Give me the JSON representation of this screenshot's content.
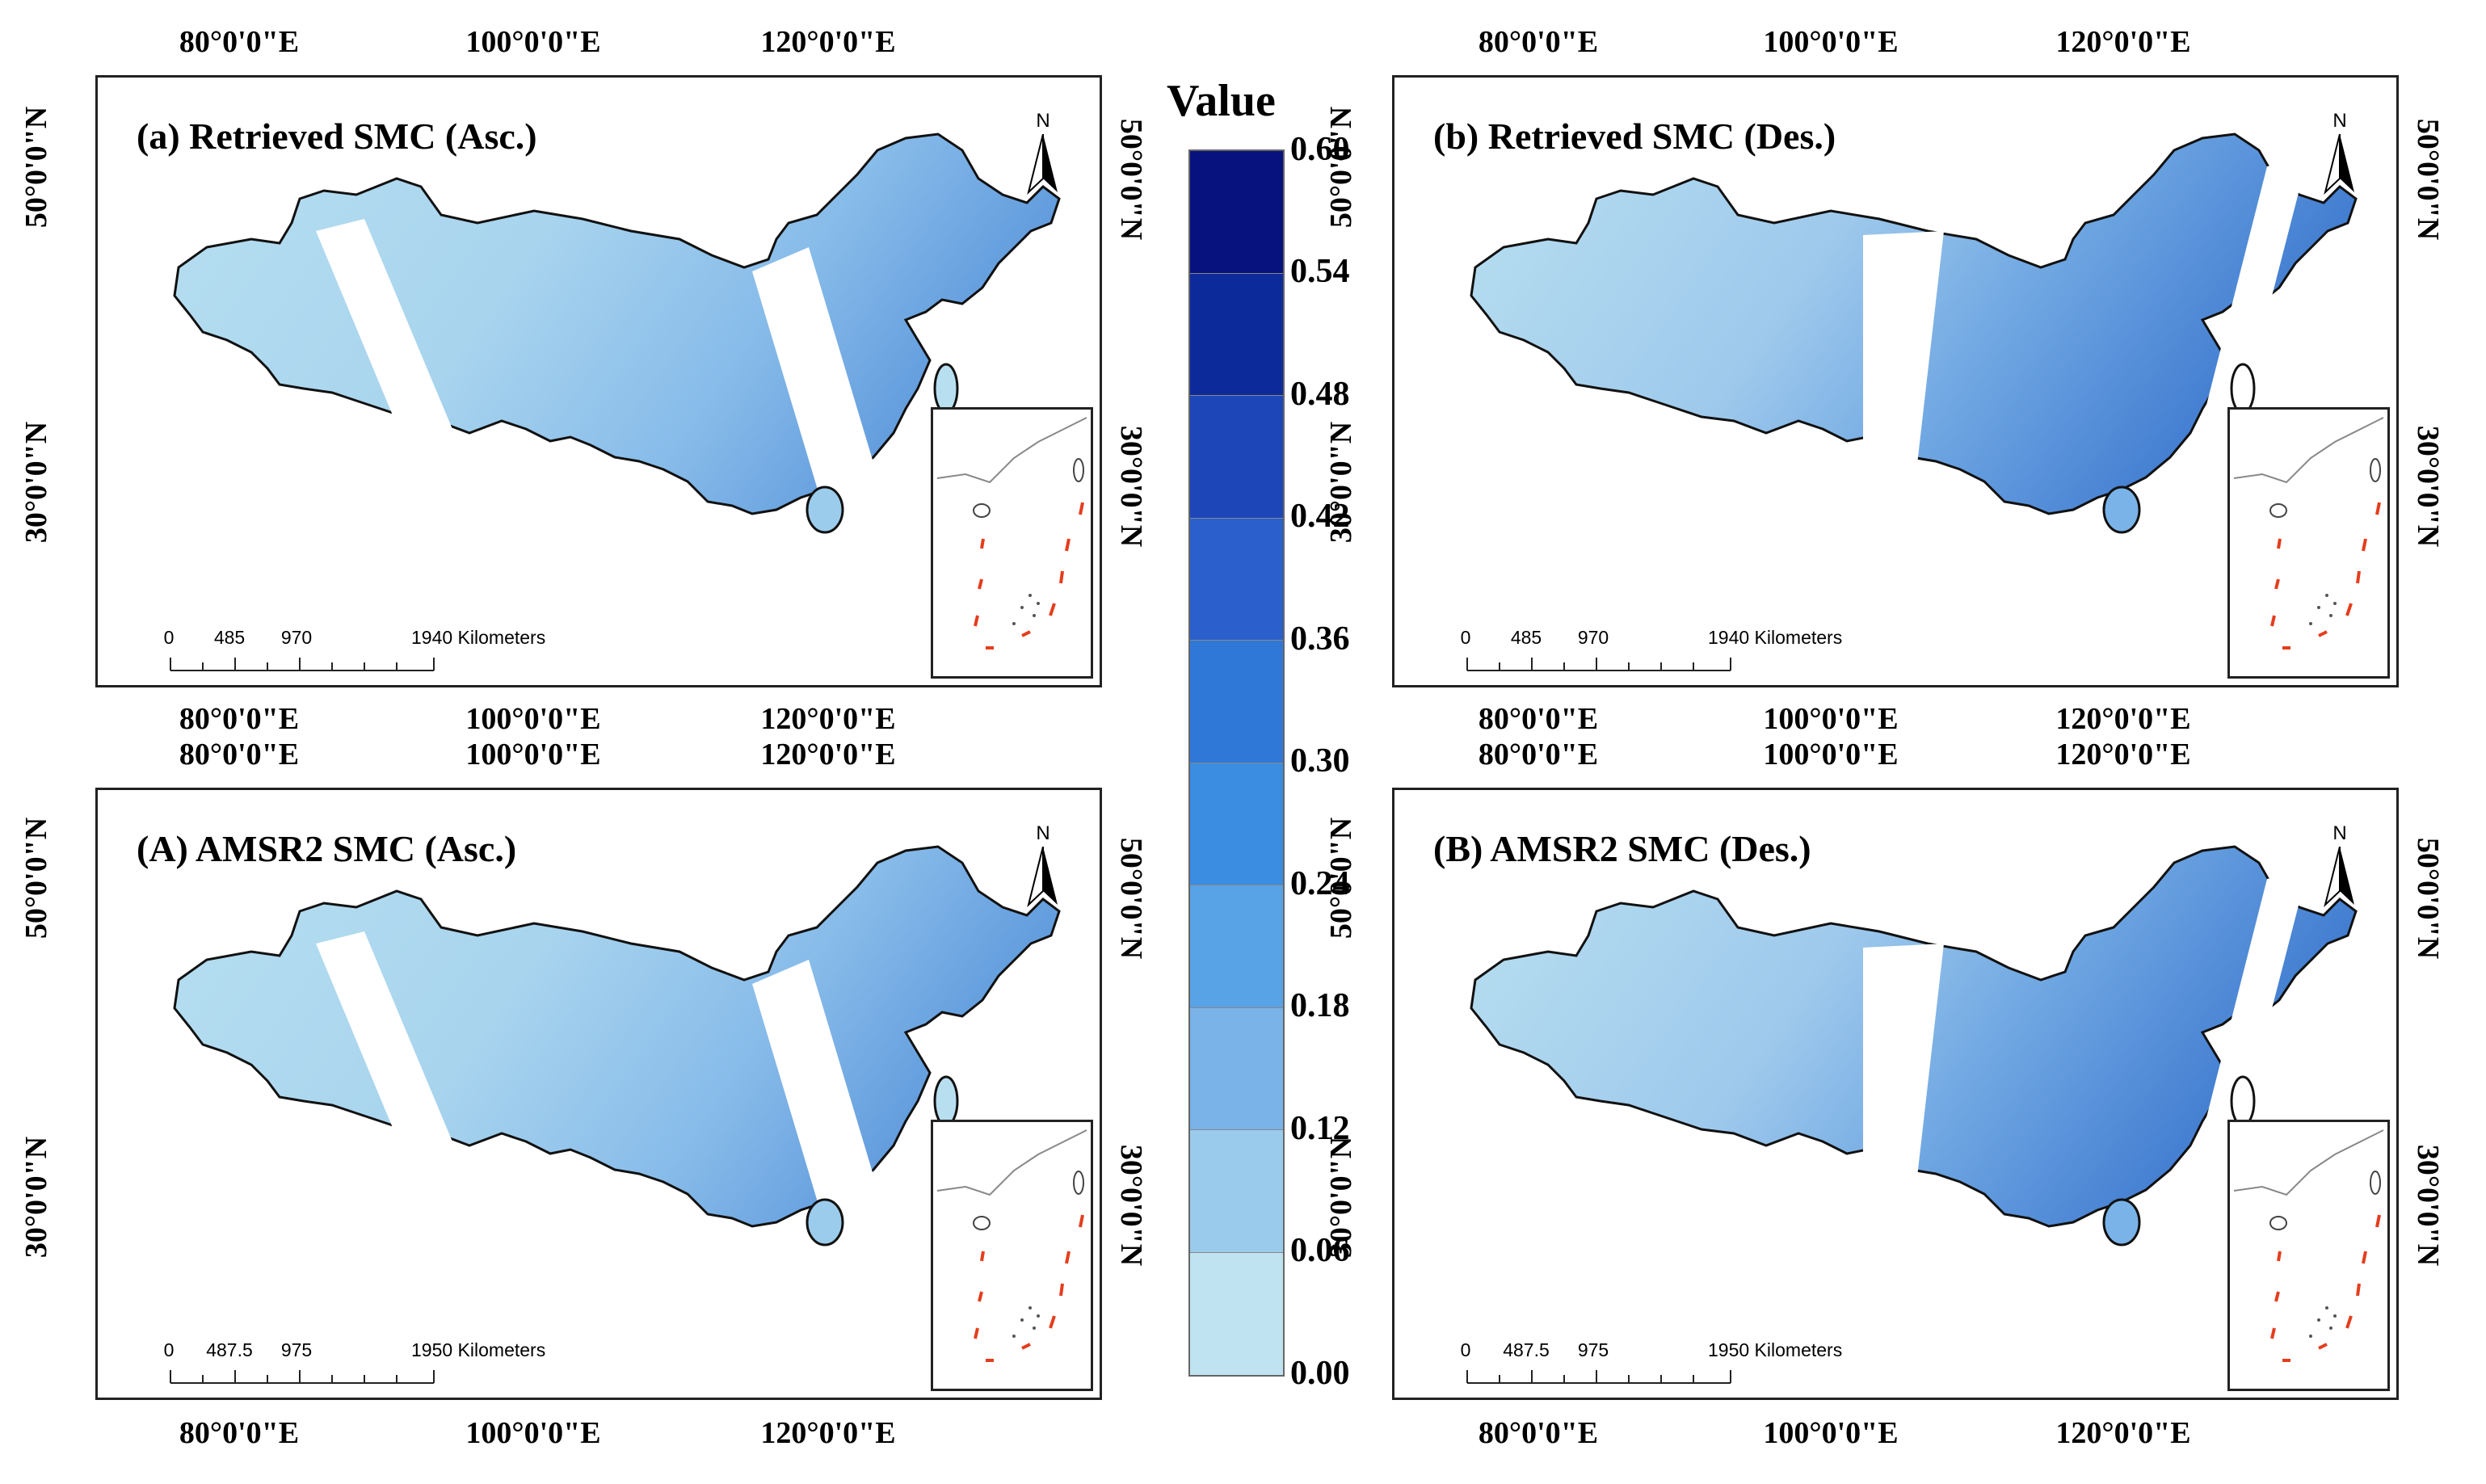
{
  "legend": {
    "title": "Value",
    "labels": [
      "0.60",
      "0.54",
      "0.48",
      "0.42",
      "0.36",
      "0.30",
      "0.24",
      "0.18",
      "0.12",
      "0.06",
      "0.00"
    ],
    "colors": [
      "#08127e",
      "#0d2a9a",
      "#1d46b8",
      "#2a5fcc",
      "#2f78d8",
      "#3b8de2",
      "#58a2e6",
      "#79b3e8",
      "#9bcbec",
      "#bfe3f0"
    ]
  },
  "axis_labels": {
    "lon80": "80°0'0\"E",
    "lon100": "100°0'0\"E",
    "lon120": "120°0'0\"E",
    "lat50": "50°0'0\"N",
    "lat30": "30°0'0\"N"
  },
  "north_label": "N",
  "panels": [
    {
      "title": "(a) Retrieved SMC (Asc.)",
      "scale": [
        "0",
        "485",
        "970",
        "1940 Kilometers"
      ]
    },
    {
      "title": "(b) Retrieved SMC (Des.)",
      "scale": [
        "0",
        "485",
        "970",
        "1940 Kilometers"
      ]
    },
    {
      "title": "(A) AMSR2 SMC (Asc.)",
      "scale": [
        "0",
        "487.5",
        "975",
        "1950 Kilometers"
      ]
    },
    {
      "title": "(B) AMSR2 SMC (Des.)",
      "scale": [
        "0",
        "487.5",
        "975",
        "1950 Kilometers"
      ]
    }
  ]
}
